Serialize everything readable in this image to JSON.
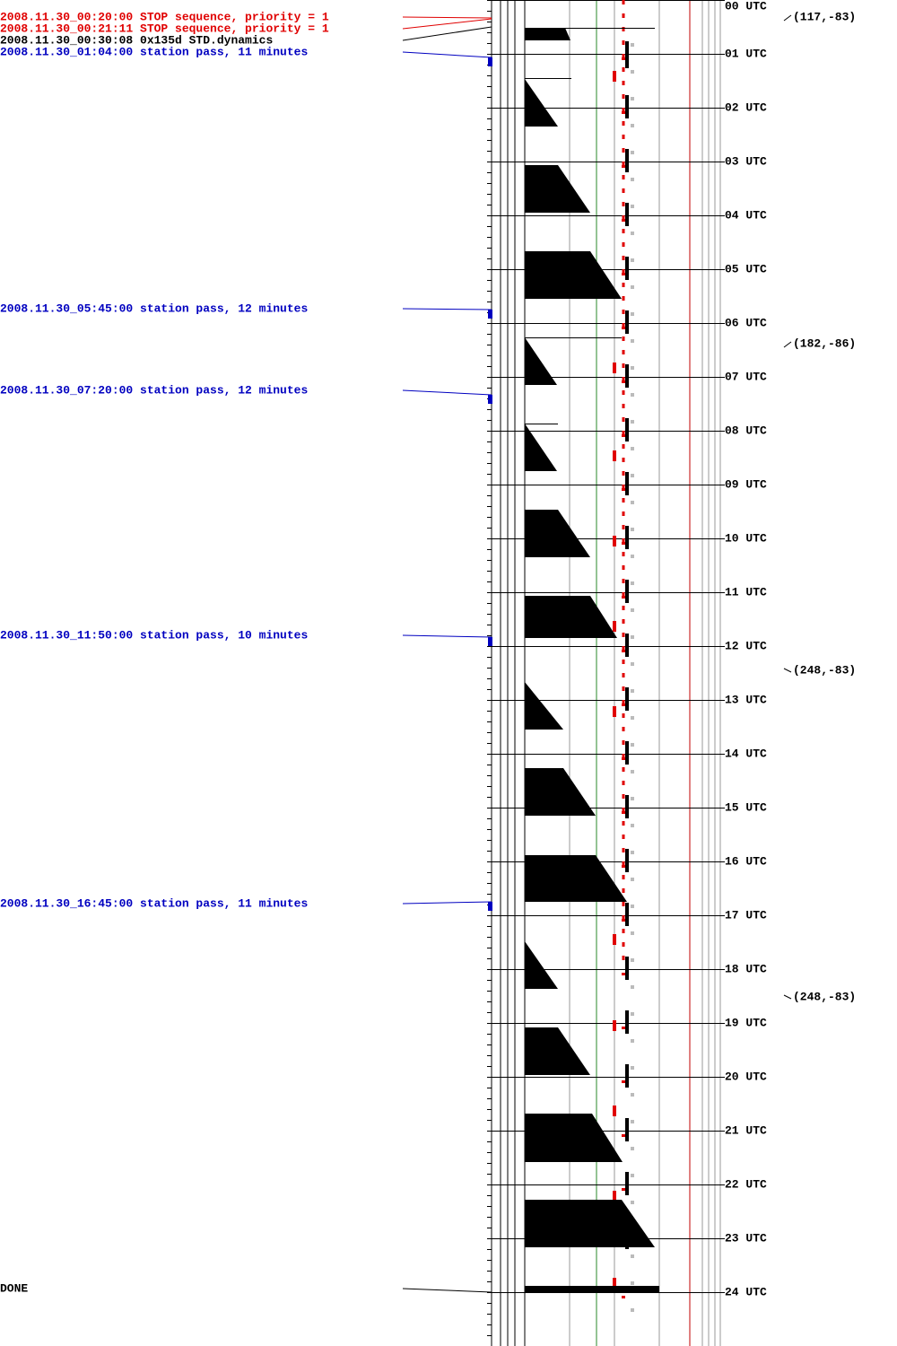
{
  "events": [
    {
      "label": "2008.11.30_00:20:00 STOP sequence, priority = 1",
      "color": "#e00000"
    },
    {
      "label": "2008.11.30_00:21:11 STOP sequence, priority = 1",
      "color": "#e00000"
    },
    {
      "label": "2008.11.30_00:30:08 0x135d STD.dynamics",
      "color": "#000000"
    },
    {
      "label": "2008.11.30_01:04:00 station pass, 11 minutes",
      "color": "#0000c0"
    },
    {
      "label": "2008.11.30_05:45:00 station pass, 12 minutes",
      "color": "#0000c0"
    },
    {
      "label": "2008.11.30_07:20:00 station pass, 12 minutes",
      "color": "#0000c0"
    },
    {
      "label": "2008.11.30_11:50:00 station pass, 10 minutes",
      "color": "#0000c0"
    },
    {
      "label": "2008.11.30_16:45:00 station pass, 11 minutes",
      "color": "#0000c0"
    }
  ],
  "done": "DONE",
  "hours": [
    "00 UTC",
    "01 UTC",
    "02 UTC",
    "03 UTC",
    "04 UTC",
    "05 UTC",
    "06 UTC",
    "07 UTC",
    "08 UTC",
    "09 UTC",
    "10 UTC",
    "11 UTC",
    "12 UTC",
    "13 UTC",
    "14 UTC",
    "15 UTC",
    "16 UTC",
    "17 UTC",
    "18 UTC",
    "19 UTC",
    "20 UTC",
    "21 UTC",
    "22 UTC",
    "23 UTC",
    "24 UTC"
  ],
  "annotations": [
    "(117,-83)",
    "(182,-86)",
    "(248,-83)",
    "(248,-83)"
  ]
}
